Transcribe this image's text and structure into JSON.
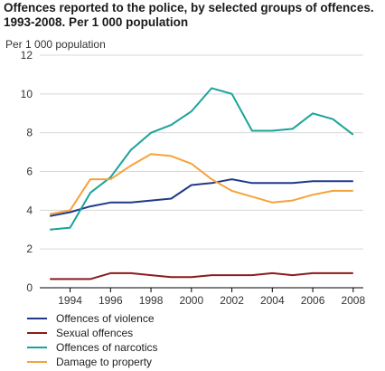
{
  "chart_data": {
    "type": "line",
    "title": "Offences reported to the police, by selected groups of offences. 1993-2008. Per 1 000 population",
    "title_lines": [
      "Offences reported to the police, by selected groups of offences.",
      "1993-2008. Per 1 000 population"
    ],
    "ylabel": "Per 1 000 population",
    "xlabel": "",
    "x": [
      1993,
      1994,
      1995,
      1996,
      1997,
      1998,
      1999,
      2000,
      2001,
      2002,
      2003,
      2004,
      2005,
      2006,
      2007,
      2008
    ],
    "xlim": [
      1992.5,
      2008.5
    ],
    "ylim": [
      0,
      12
    ],
    "x_ticks": [
      1994,
      1996,
      1998,
      2000,
      2002,
      2004,
      2006,
      2008
    ],
    "y_ticks": [
      0,
      2,
      4,
      6,
      8,
      10,
      12
    ],
    "grid": "horizontal",
    "legend_position": "bottom",
    "series": [
      {
        "name": "Offences of violence",
        "color": "#1f3a8a",
        "values": [
          3.7,
          3.9,
          4.2,
          4.4,
          4.4,
          4.5,
          4.6,
          5.3,
          5.4,
          5.6,
          5.4,
          5.4,
          5.4,
          5.5,
          5.5,
          5.5
        ]
      },
      {
        "name": "Sexual offences",
        "color": "#8b1c1c",
        "values": [
          0.45,
          0.45,
          0.45,
          0.75,
          0.75,
          0.65,
          0.55,
          0.55,
          0.65,
          0.65,
          0.65,
          0.75,
          0.65,
          0.75,
          0.75,
          0.75
        ]
      },
      {
        "name": "Offences of narcotics",
        "color": "#1aa39a",
        "values": [
          3.0,
          3.1,
          4.9,
          5.7,
          7.1,
          8.0,
          8.4,
          9.1,
          10.3,
          10.0,
          8.1,
          8.1,
          8.2,
          9.0,
          8.7,
          7.9
        ]
      },
      {
        "name": "Damage to property",
        "color": "#f5a33a",
        "values": [
          3.8,
          4.0,
          5.6,
          5.6,
          6.3,
          6.9,
          6.8,
          6.4,
          5.6,
          5.0,
          4.7,
          4.4,
          4.5,
          4.8,
          5.0,
          5.0
        ]
      }
    ]
  }
}
